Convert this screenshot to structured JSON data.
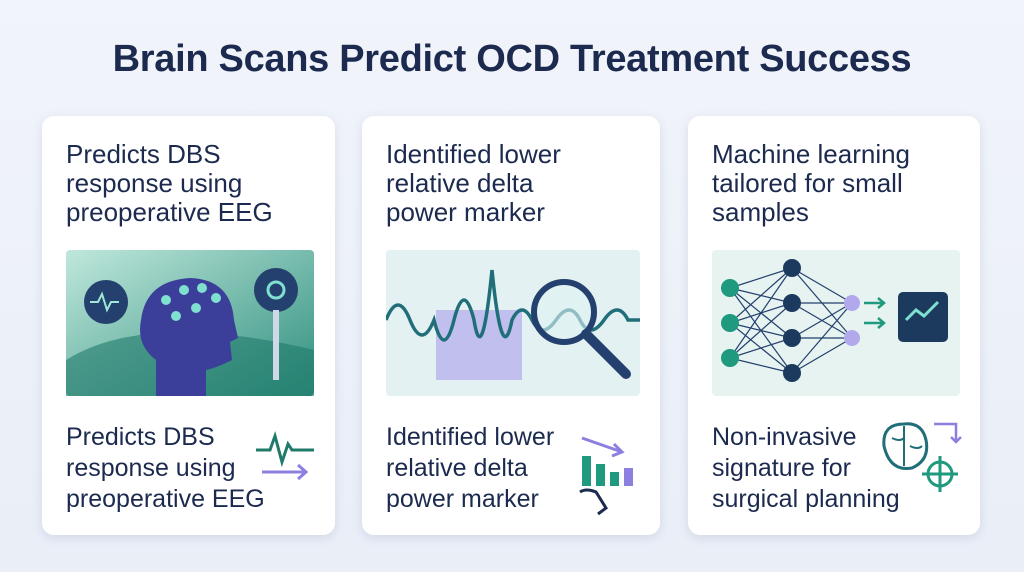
{
  "header": {
    "title": "Brain Scans Predict OCD Treatment Success"
  },
  "cards": [
    {
      "heading": [
        "Predicts DBS",
        "response using",
        "preoperative EEG"
      ],
      "footer": [
        "Predicts DBS",
        "response using",
        "preoperative EEG"
      ]
    },
    {
      "heading": [
        "Identified lower",
        "relative delta",
        "power marker"
      ],
      "footer": [
        "Identified lower",
        "relative delta",
        "power marker"
      ]
    },
    {
      "heading": [
        "Machine learning",
        "tailored for small",
        "samples"
      ],
      "footer": [
        "Non-invasive",
        "signature for",
        "surgical planning"
      ]
    }
  ]
}
